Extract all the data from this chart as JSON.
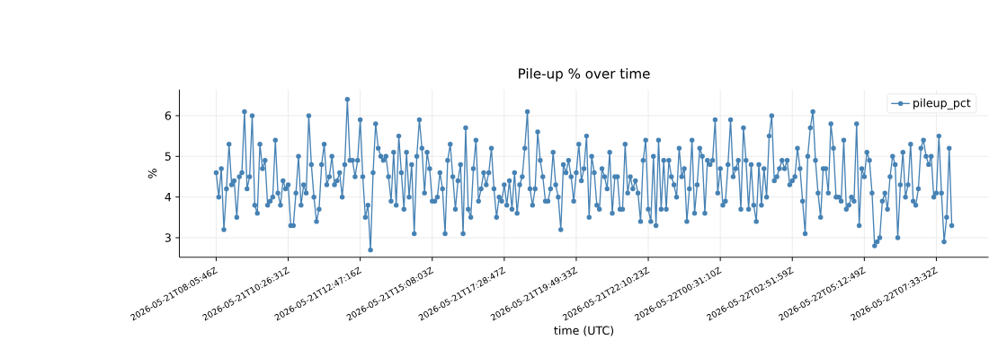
{
  "chart_data": {
    "type": "line",
    "title": "Pile-up % over time",
    "xlabel": "time (UTC)",
    "ylabel": "%",
    "categories": [
      "2026-05-21T08:05:46Z",
      null,
      null,
      null,
      null,
      null,
      null,
      null,
      null,
      null,
      null,
      null,
      null,
      null,
      null,
      null,
      null,
      null,
      null,
      null,
      null,
      null,
      null,
      null,
      null,
      null,
      null,
      null,
      "2026-05-21T10:26:31Z",
      null,
      null,
      null,
      null,
      null,
      null,
      null,
      null,
      null,
      null,
      null,
      null,
      null,
      null,
      null,
      null,
      null,
      null,
      null,
      null,
      null,
      null,
      null,
      null,
      null,
      null,
      null,
      "2026-05-21T12:47:16Z",
      null,
      null,
      null,
      null,
      null,
      null,
      null,
      null,
      null,
      null,
      null,
      null,
      null,
      null,
      null,
      null,
      null,
      null,
      null,
      null,
      null,
      null,
      null,
      null,
      null,
      null,
      null,
      "2026-05-21T15:08:03Z",
      null,
      null,
      null,
      null,
      null,
      null,
      null,
      null,
      null,
      null,
      null,
      null,
      null,
      null,
      null,
      null,
      null,
      null,
      null,
      null,
      null,
      null,
      null,
      null,
      null,
      null,
      null,
      "2026-05-21T17:28:47Z",
      null,
      null,
      null,
      null,
      null,
      null,
      null,
      null,
      null,
      null,
      null,
      null,
      null,
      null,
      null,
      null,
      null,
      null,
      null,
      null,
      null,
      null,
      null,
      null,
      null,
      null,
      null,
      "2026-05-21T19:49:33Z",
      null,
      null,
      null,
      null,
      null,
      null,
      null,
      null,
      null,
      null,
      null,
      null,
      null,
      null,
      null,
      null,
      null,
      null,
      null,
      null,
      null,
      null,
      null,
      null,
      null,
      null,
      null,
      "2026-05-21T22:10:23Z",
      null,
      null,
      null,
      null,
      null,
      null,
      null,
      null,
      null,
      null,
      null,
      null,
      null,
      null,
      null,
      null,
      null,
      null,
      null,
      null,
      null,
      null,
      null,
      null,
      null,
      null,
      null,
      "2026-05-22T00:31:10Z",
      null,
      null,
      null,
      null,
      null,
      null,
      null,
      null,
      null,
      null,
      null,
      null,
      null,
      null,
      null,
      null,
      null,
      null,
      null,
      null,
      null,
      null,
      null,
      null,
      null,
      null,
      null,
      "2026-05-22T02:51:59Z",
      null,
      null,
      null,
      null,
      null,
      null,
      null,
      null,
      null,
      null,
      null,
      null,
      null,
      null,
      null,
      null,
      null,
      null,
      null,
      null,
      null,
      null,
      null,
      null,
      null,
      null,
      null,
      "2026-05-22T05:12:49Z",
      null,
      null,
      null,
      null,
      null,
      null,
      null,
      null,
      null,
      null,
      null,
      null,
      null,
      null,
      null,
      null,
      null,
      null,
      null,
      null,
      null,
      null,
      null,
      null,
      null,
      null,
      null,
      "2026-05-22T07:33:32Z",
      null,
      null,
      null,
      null,
      null,
      null
    ],
    "series": [
      {
        "name": "pileup_pct",
        "color": "#4682b4",
        "values": [
          4.6,
          4.0,
          4.7,
          3.2,
          4.2,
          5.3,
          4.3,
          4.4,
          3.5,
          4.5,
          4.6,
          6.1,
          4.2,
          4.5,
          6.0,
          3.8,
          3.6,
          5.3,
          4.7,
          4.9,
          3.8,
          3.9,
          4.0,
          5.4,
          4.1,
          3.8,
          4.4,
          4.2,
          4.3,
          3.3,
          3.3,
          4.1,
          5.0,
          3.8,
          4.3,
          4.1,
          6.0,
          4.8,
          4.0,
          3.4,
          3.7,
          4.8,
          5.3,
          4.3,
          4.5,
          5.0,
          4.3,
          4.4,
          4.6,
          4.0,
          4.8,
          6.4,
          4.9,
          4.9,
          4.5,
          4.9,
          5.9,
          4.5,
          3.5,
          3.8,
          2.7,
          4.6,
          5.8,
          5.2,
          5.0,
          4.9,
          5.0,
          4.5,
          3.9,
          5.1,
          3.8,
          5.5,
          4.6,
          3.7,
          5.1,
          4.0,
          4.8,
          3.1,
          5.0,
          5.9,
          5.2,
          4.1,
          5.1,
          4.7,
          3.9,
          3.9,
          4.0,
          4.6,
          4.2,
          3.1,
          4.9,
          5.3,
          4.5,
          3.7,
          4.4,
          4.8,
          3.1,
          5.7,
          3.7,
          3.5,
          4.7,
          5.4,
          3.9,
          4.2,
          4.6,
          4.3,
          4.6,
          5.2,
          4.2,
          3.5,
          4.0,
          3.9,
          4.3,
          3.8,
          4.4,
          3.7,
          4.6,
          3.6,
          4.3,
          4.5,
          5.2,
          6.1,
          4.2,
          3.8,
          4.2,
          5.6,
          4.9,
          4.5,
          3.9,
          3.9,
          4.2,
          5.1,
          4.3,
          4.0,
          3.2,
          4.8,
          4.6,
          4.9,
          4.5,
          3.9,
          4.6,
          5.3,
          4.4,
          4.7,
          5.5,
          3.5,
          5.0,
          4.6,
          3.8,
          3.7,
          4.7,
          4.5,
          4.2,
          5.1,
          3.6,
          4.5,
          4.5,
          3.7,
          3.7,
          5.3,
          4.1,
          4.5,
          4.2,
          4.4,
          4.1,
          3.4,
          4.9,
          5.4,
          3.7,
          3.4,
          5.0,
          3.3,
          5.4,
          3.7,
          4.9,
          3.7,
          4.9,
          4.5,
          4.3,
          4.0,
          5.2,
          4.5,
          4.7,
          3.4,
          4.2,
          5.4,
          3.6,
          4.3,
          5.2,
          5.0,
          3.6,
          4.9,
          4.8,
          4.9,
          5.9,
          4.1,
          4.7,
          3.8,
          3.9,
          4.8,
          5.9,
          4.5,
          4.7,
          4.9,
          3.7,
          5.7,
          4.9,
          3.7,
          4.8,
          3.8,
          3.4,
          4.8,
          3.8,
          4.7,
          4.0,
          5.5,
          6.0,
          4.4,
          4.5,
          4.7,
          4.9,
          4.7,
          4.9,
          4.3,
          4.4,
          4.5,
          5.2,
          4.7,
          3.9,
          3.1,
          5.0,
          5.7,
          6.1,
          4.9,
          4.1,
          3.5,
          4.7,
          4.7,
          4.1,
          5.8,
          5.2,
          4.0,
          4.0,
          3.9,
          5.4,
          3.7,
          3.8,
          4.0,
          3.9,
          5.8,
          3.3,
          4.7,
          4.5,
          5.1,
          4.9,
          4.1,
          2.8,
          2.9,
          3.0,
          3.9,
          4.1,
          3.7,
          4.5,
          5.0,
          4.8,
          3.0,
          4.3,
          5.1,
          4.0,
          4.3,
          5.3,
          3.9,
          3.8,
          4.2,
          5.2,
          5.4,
          5.0,
          4.8,
          5.0,
          4.0,
          4.1,
          5.5,
          4.1,
          2.9,
          3.5,
          5.2,
          3.3
        ]
      }
    ],
    "ylim": [
      2.52,
      6.64
    ],
    "yticks": [
      3,
      4,
      5,
      6
    ],
    "grid": true,
    "legend": "top right",
    "marker": "circle"
  }
}
